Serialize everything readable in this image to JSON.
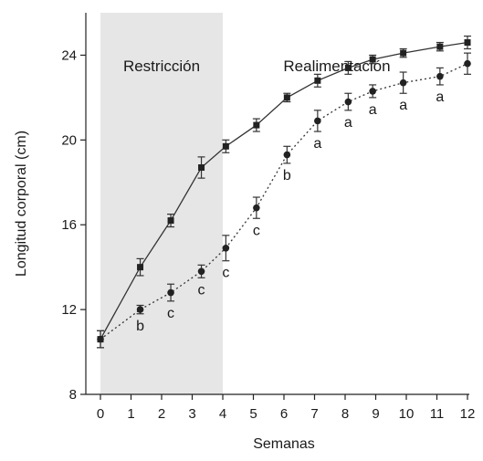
{
  "chart_data": {
    "type": "line",
    "title": "",
    "xlabel": "Semanas",
    "ylabel": "Longitud corporal (cm)",
    "xlim": [
      -0.5,
      12.5
    ],
    "ylim": [
      8,
      26
    ],
    "xticks": [
      0,
      1,
      2,
      3,
      4,
      5,
      6,
      7,
      8,
      9,
      10,
      11,
      12
    ],
    "yticks": [
      8,
      12,
      16,
      20,
      24
    ],
    "grid": false,
    "shaded_region": {
      "x_start": 0,
      "x_end": 4,
      "color": "#e6e6e6"
    },
    "annotations": [
      {
        "text": "Restricción",
        "region": "restriction"
      },
      {
        "text": "Realimentación",
        "region": "refeeding"
      }
    ],
    "series": [
      {
        "marker": "square",
        "line_style": "solid",
        "color": "#333333",
        "x": [
          0,
          1.3,
          2.3,
          3.3,
          4.1,
          5.1,
          6.1,
          7.1,
          8.1,
          8.9,
          9.9,
          11.1,
          12
        ],
        "y": [
          10.6,
          14.0,
          16.2,
          18.7,
          19.7,
          20.7,
          22.0,
          22.8,
          23.4,
          23.8,
          24.1,
          24.4,
          24.6
        ],
        "error": [
          0.4,
          0.4,
          0.3,
          0.5,
          0.3,
          0.3,
          0.2,
          0.3,
          0.3,
          0.2,
          0.2,
          0.2,
          0.3
        ]
      },
      {
        "marker": "circle",
        "line_style": "dotted",
        "color": "#333333",
        "x": [
          0,
          1.3,
          2.3,
          3.3,
          4.1,
          5.1,
          6.1,
          7.1,
          8.1,
          8.9,
          9.9,
          11.1,
          12
        ],
        "y": [
          10.6,
          12.0,
          12.8,
          13.8,
          14.9,
          16.8,
          19.3,
          20.9,
          21.8,
          22.3,
          22.7,
          23.0,
          23.6
        ],
        "error": [
          0.4,
          0.2,
          0.4,
          0.3,
          0.6,
          0.5,
          0.4,
          0.5,
          0.4,
          0.3,
          0.5,
          0.4,
          0.5
        ],
        "significance": [
          "",
          "b",
          "c",
          "c",
          "c",
          "c",
          "b",
          "a",
          "a",
          "a",
          "a",
          "a",
          ""
        ]
      }
    ]
  }
}
